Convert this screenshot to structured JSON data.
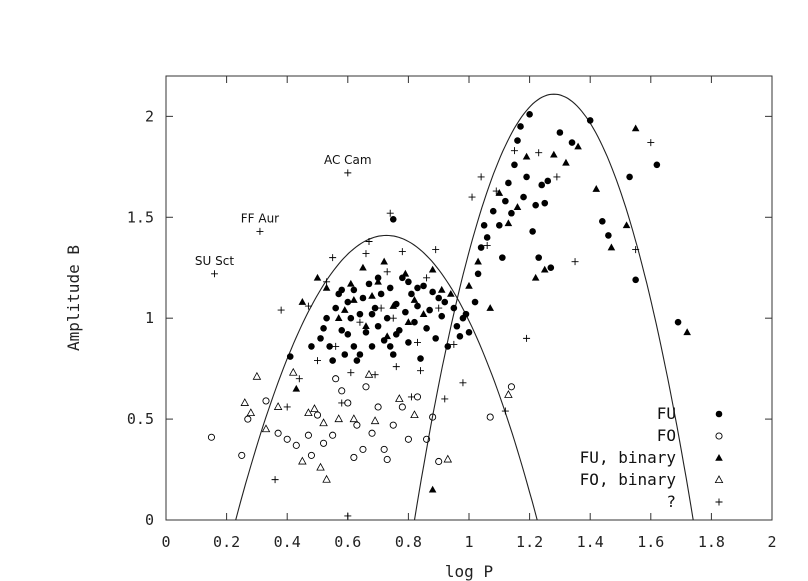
{
  "chart_data": {
    "type": "scatter",
    "title": "",
    "xlabel": "log P",
    "ylabel": "Amplitude B",
    "xlim": [
      0,
      2
    ],
    "ylim": [
      0,
      2.2
    ],
    "x_ticks": [
      "0",
      "0.2",
      "0.4",
      "0.6",
      "0.8",
      "1",
      "1.2",
      "1.4",
      "1.6",
      "1.8",
      "2"
    ],
    "y_ticks": [
      "0",
      "0.5",
      "1",
      "1.5",
      "2"
    ],
    "grid": false,
    "legend_position": "bottom-right",
    "series": [
      {
        "name": "FU",
        "marker": "filled-circle",
        "points": [
          [
            0.41,
            0.81
          ],
          [
            0.48,
            0.86
          ],
          [
            0.51,
            0.9
          ],
          [
            0.52,
            0.95
          ],
          [
            0.53,
            1.0
          ],
          [
            0.54,
            0.86
          ],
          [
            0.55,
            0.79
          ],
          [
            0.56,
            1.05
          ],
          [
            0.57,
            1.12
          ],
          [
            0.58,
            0.94
          ],
          [
            0.59,
            0.82
          ],
          [
            0.6,
            1.08
          ],
          [
            0.61,
            1.0
          ],
          [
            0.62,
            0.86
          ],
          [
            0.62,
            1.14
          ],
          [
            0.63,
            0.79
          ],
          [
            0.64,
            1.02
          ],
          [
            0.65,
            1.1
          ],
          [
            0.66,
            0.93
          ],
          [
            0.67,
            1.17
          ],
          [
            0.68,
            0.86
          ],
          [
            0.69,
            1.05
          ],
          [
            0.7,
            0.96
          ],
          [
            0.71,
            1.12
          ],
          [
            0.72,
            0.89
          ],
          [
            0.73,
            1.0
          ],
          [
            0.74,
            1.15
          ],
          [
            0.75,
            1.49
          ],
          [
            0.75,
            0.82
          ],
          [
            0.76,
            1.07
          ],
          [
            0.77,
            0.94
          ],
          [
            0.78,
            1.2
          ],
          [
            0.79,
            1.03
          ],
          [
            0.8,
            0.88
          ],
          [
            0.81,
            1.12
          ],
          [
            0.82,
            0.98
          ],
          [
            0.83,
            1.06
          ],
          [
            0.84,
            0.8
          ],
          [
            0.85,
            1.16
          ],
          [
            0.86,
            0.95
          ],
          [
            0.87,
            1.04
          ],
          [
            0.88,
            1.13
          ],
          [
            0.89,
            0.9
          ],
          [
            0.9,
            1.1
          ],
          [
            0.91,
            1.01
          ],
          [
            0.93,
            0.86
          ],
          [
            0.95,
            1.05
          ],
          [
            0.96,
            0.96
          ],
          [
            0.97,
            0.91
          ],
          [
            0.98,
            1.0
          ],
          [
            0.99,
            1.02
          ],
          [
            1.0,
            0.93
          ],
          [
            1.02,
            1.08
          ],
          [
            1.03,
            1.22
          ],
          [
            1.04,
            1.35
          ],
          [
            1.05,
            1.46
          ],
          [
            1.06,
            1.4
          ],
          [
            1.08,
            1.53
          ],
          [
            1.1,
            1.46
          ],
          [
            1.11,
            1.3
          ],
          [
            1.12,
            1.58
          ],
          [
            1.13,
            1.67
          ],
          [
            1.14,
            1.52
          ],
          [
            1.15,
            1.76
          ],
          [
            1.16,
            1.88
          ],
          [
            1.17,
            1.95
          ],
          [
            1.18,
            1.6
          ],
          [
            1.19,
            1.7
          ],
          [
            1.2,
            2.01
          ],
          [
            1.21,
            1.43
          ],
          [
            1.22,
            1.56
          ],
          [
            1.23,
            1.3
          ],
          [
            1.24,
            1.66
          ],
          [
            1.25,
            1.57
          ],
          [
            1.26,
            1.68
          ],
          [
            1.27,
            1.25
          ],
          [
            1.3,
            1.92
          ],
          [
            1.34,
            1.87
          ],
          [
            1.4,
            1.98
          ],
          [
            1.44,
            1.48
          ],
          [
            1.46,
            1.41
          ],
          [
            1.53,
            1.7
          ],
          [
            1.55,
            1.19
          ],
          [
            1.62,
            1.76
          ],
          [
            1.69,
            0.98
          ],
          [
            0.58,
            1.14
          ],
          [
            0.64,
            0.82
          ],
          [
            0.7,
            1.2
          ],
          [
            0.76,
            0.92
          ],
          [
            0.83,
            1.15
          ],
          [
            0.92,
            1.08
          ],
          [
            0.68,
            1.02
          ],
          [
            0.74,
            0.86
          ],
          [
            0.6,
            0.92
          ],
          [
            0.8,
            1.18
          ]
        ]
      },
      {
        "name": "FO",
        "marker": "open-circle",
        "points": [
          [
            0.15,
            0.41
          ],
          [
            0.25,
            0.32
          ],
          [
            0.27,
            0.5
          ],
          [
            0.33,
            0.59
          ],
          [
            0.37,
            0.43
          ],
          [
            0.4,
            0.4
          ],
          [
            0.43,
            0.37
          ],
          [
            0.47,
            0.42
          ],
          [
            0.5,
            0.52
          ],
          [
            0.52,
            0.38
          ],
          [
            0.55,
            0.42
          ],
          [
            0.56,
            0.7
          ],
          [
            0.58,
            0.64
          ],
          [
            0.6,
            0.58
          ],
          [
            0.62,
            0.31
          ],
          [
            0.63,
            0.47
          ],
          [
            0.66,
            0.66
          ],
          [
            0.68,
            0.43
          ],
          [
            0.7,
            0.56
          ],
          [
            0.72,
            0.35
          ],
          [
            0.73,
            0.3
          ],
          [
            0.75,
            0.47
          ],
          [
            0.78,
            0.56
          ],
          [
            0.8,
            0.4
          ],
          [
            0.83,
            0.61
          ],
          [
            0.86,
            0.4
          ],
          [
            0.88,
            0.51
          ],
          [
            0.9,
            0.29
          ],
          [
            1.07,
            0.51
          ],
          [
            1.14,
            0.66
          ],
          [
            0.65,
            0.35
          ],
          [
            0.48,
            0.32
          ]
        ]
      },
      {
        "name": "FU, binary",
        "marker": "filled-triangle",
        "points": [
          [
            0.43,
            0.65
          ],
          [
            0.45,
            1.08
          ],
          [
            0.5,
            1.2
          ],
          [
            0.53,
            1.15
          ],
          [
            0.57,
            1.0
          ],
          [
            0.61,
            1.17
          ],
          [
            0.65,
            1.25
          ],
          [
            0.68,
            1.11
          ],
          [
            0.72,
            1.28
          ],
          [
            0.75,
            1.06
          ],
          [
            0.79,
            1.22
          ],
          [
            0.82,
            1.09
          ],
          [
            0.85,
            1.02
          ],
          [
            0.88,
            1.24
          ],
          [
            0.91,
            1.14
          ],
          [
            0.94,
            1.12
          ],
          [
            1.0,
            1.16
          ],
          [
            1.03,
            1.28
          ],
          [
            1.07,
            1.05
          ],
          [
            1.1,
            1.62
          ],
          [
            1.13,
            1.47
          ],
          [
            1.16,
            1.55
          ],
          [
            1.19,
            1.8
          ],
          [
            1.22,
            1.2
          ],
          [
            1.25,
            1.24
          ],
          [
            1.28,
            1.81
          ],
          [
            1.32,
            1.77
          ],
          [
            1.36,
            1.85
          ],
          [
            1.42,
            1.64
          ],
          [
            1.47,
            1.35
          ],
          [
            1.52,
            1.46
          ],
          [
            1.55,
            1.94
          ],
          [
            1.72,
            0.93
          ],
          [
            0.88,
            0.15
          ],
          [
            0.59,
            1.04
          ],
          [
            0.66,
            0.96
          ],
          [
            0.73,
            0.91
          ],
          [
            0.62,
            1.09
          ],
          [
            0.7,
            1.18
          ],
          [
            0.8,
            0.98
          ]
        ]
      },
      {
        "name": "FO, binary",
        "marker": "open-triangle",
        "points": [
          [
            0.26,
            0.58
          ],
          [
            0.28,
            0.53
          ],
          [
            0.3,
            0.71
          ],
          [
            0.33,
            0.45
          ],
          [
            0.37,
            0.56
          ],
          [
            0.42,
            0.73
          ],
          [
            0.47,
            0.53
          ],
          [
            0.49,
            0.55
          ],
          [
            0.51,
            0.26
          ],
          [
            0.52,
            0.48
          ],
          [
            0.53,
            0.2
          ],
          [
            0.57,
            0.5
          ],
          [
            0.62,
            0.5
          ],
          [
            0.69,
            0.49
          ],
          [
            0.77,
            0.6
          ],
          [
            0.82,
            0.52
          ],
          [
            0.93,
            0.3
          ],
          [
            1.13,
            0.62
          ],
          [
            0.67,
            0.72
          ],
          [
            0.45,
            0.29
          ]
        ]
      },
      {
        "name": "?",
        "marker": "plus",
        "points": [
          [
            0.16,
            1.22
          ],
          [
            0.31,
            1.43
          ],
          [
            0.6,
            1.72
          ],
          [
            0.74,
            1.52
          ],
          [
            0.38,
            1.04
          ],
          [
            0.47,
            1.06
          ],
          [
            0.5,
            0.79
          ],
          [
            0.55,
            1.3
          ],
          [
            0.58,
            0.58
          ],
          [
            0.61,
            0.73
          ],
          [
            0.64,
            0.98
          ],
          [
            0.66,
            1.32
          ],
          [
            0.69,
            0.72
          ],
          [
            0.71,
            1.05
          ],
          [
            0.73,
            1.23
          ],
          [
            0.76,
            0.76
          ],
          [
            0.78,
            1.33
          ],
          [
            0.81,
            0.61
          ],
          [
            0.84,
            0.74
          ],
          [
            0.86,
            1.2
          ],
          [
            0.89,
            1.34
          ],
          [
            0.92,
            0.6
          ],
          [
            0.95,
            0.87
          ],
          [
            0.98,
            0.68
          ],
          [
            1.01,
            1.6
          ],
          [
            1.04,
            1.7
          ],
          [
            1.09,
            1.63
          ],
          [
            1.12,
            0.54
          ],
          [
            1.15,
            1.83
          ],
          [
            1.19,
            0.9
          ],
          [
            1.23,
            1.82
          ],
          [
            1.29,
            1.7
          ],
          [
            1.35,
            1.28
          ],
          [
            1.55,
            1.34
          ],
          [
            1.6,
            1.87
          ],
          [
            0.6,
            0.02
          ],
          [
            0.36,
            0.2
          ],
          [
            0.4,
            0.56
          ],
          [
            0.53,
            1.18
          ],
          [
            0.67,
            1.38
          ],
          [
            0.9,
            1.05
          ],
          [
            1.06,
            1.36
          ],
          [
            0.44,
            0.7
          ],
          [
            0.56,
            0.86
          ],
          [
            0.83,
            0.88
          ],
          [
            0.75,
            1.0
          ]
        ]
      }
    ],
    "curves": [
      {
        "peak_x": 0.72,
        "peak_y": 1.41,
        "x_at_zero": [
          0.23,
          1.225
        ]
      },
      {
        "peak_x": 1.28,
        "peak_y": 2.11,
        "x_at_zero": [
          0.82,
          1.74
        ]
      }
    ],
    "annotations": [
      {
        "text": "SU Sct",
        "x": 0.16,
        "y": 1.22
      },
      {
        "text": "FF Aur",
        "x": 0.31,
        "y": 1.43
      },
      {
        "text": "AC Cam",
        "x": 0.6,
        "y": 1.72
      }
    ]
  }
}
